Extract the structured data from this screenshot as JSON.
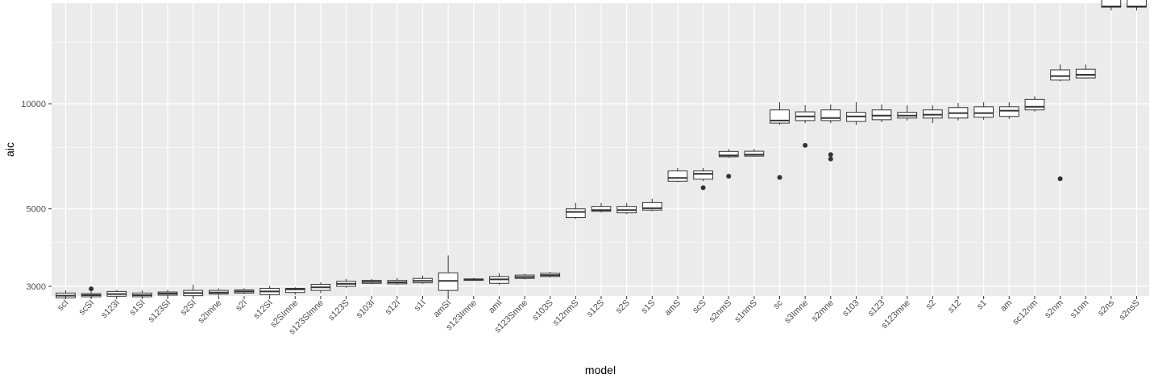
{
  "chart_data": {
    "type": "box",
    "xlabel": "model",
    "ylabel": "aic",
    "y_scale": "log",
    "ylim": [
      2400,
      22000
    ],
    "y_ticks": [
      3000,
      5000,
      10000
    ],
    "y_minor_ticks": [
      4000,
      7500,
      15000
    ],
    "grid": true,
    "colors": {
      "panel": "#EBEBEB",
      "grid": "#FFFFFF",
      "box_fill": "#FFFFFF",
      "box_line": "#333333"
    },
    "boxes": [
      {
        "model": "scI",
        "lower": 2760,
        "q1": 2780,
        "median": 2820,
        "q3": 2870,
        "upper": 2920,
        "outliers": []
      },
      {
        "model": "scSI",
        "lower": 2780,
        "q1": 2800,
        "median": 2830,
        "q3": 2860,
        "upper": 2900,
        "outliers": [
          2950
        ]
      },
      {
        "model": "s123I",
        "lower": 2790,
        "q1": 2810,
        "median": 2850,
        "q3": 2900,
        "upper": 2930,
        "outliers": []
      },
      {
        "model": "s1SI",
        "lower": 2780,
        "q1": 2800,
        "median": 2830,
        "q3": 2870,
        "upper": 2920,
        "outliers": []
      },
      {
        "model": "s123SI",
        "lower": 2800,
        "q1": 2830,
        "median": 2860,
        "q3": 2890,
        "upper": 2930,
        "outliers": []
      },
      {
        "model": "s2SI",
        "lower": 2790,
        "q1": 2820,
        "median": 2870,
        "q3": 2920,
        "upper": 3030,
        "outliers": []
      },
      {
        "model": "s2Imne",
        "lower": 2820,
        "q1": 2850,
        "median": 2880,
        "q3": 2920,
        "upper": 2960,
        "outliers": []
      },
      {
        "model": "s2I",
        "lower": 2850,
        "q1": 2870,
        "median": 2900,
        "q3": 2930,
        "upper": 2960,
        "outliers": []
      },
      {
        "model": "s12SI",
        "lower": 2810,
        "q1": 2840,
        "median": 2900,
        "q3": 2960,
        "upper": 3010,
        "outliers": []
      },
      {
        "model": "s2SImne",
        "lower": 2840,
        "q1": 2880,
        "median": 2940,
        "q3": 2960,
        "upper": 2980,
        "outliers": []
      },
      {
        "model": "s123SImne",
        "lower": 2870,
        "q1": 2920,
        "median": 2980,
        "q3": 3040,
        "upper": 3080,
        "outliers": []
      },
      {
        "model": "s123S",
        "lower": 2970,
        "q1": 3000,
        "median": 3050,
        "q3": 3100,
        "upper": 3150,
        "outliers": []
      },
      {
        "model": "s103I",
        "lower": 3040,
        "q1": 3060,
        "median": 3090,
        "q3": 3120,
        "upper": 3150,
        "outliers": []
      },
      {
        "model": "s12I",
        "lower": 3030,
        "q1": 3050,
        "median": 3080,
        "q3": 3120,
        "upper": 3170,
        "outliers": []
      },
      {
        "model": "s1I",
        "lower": 3050,
        "q1": 3070,
        "median": 3110,
        "q3": 3160,
        "upper": 3220,
        "outliers": []
      },
      {
        "model": "amSI",
        "lower": 2800,
        "q1": 2920,
        "median": 3110,
        "q3": 3280,
        "upper": 3680,
        "outliers": []
      },
      {
        "model": "s123Imne",
        "lower": 3110,
        "q1": 3120,
        "median": 3135,
        "q3": 3150,
        "upper": 3170,
        "outliers": []
      },
      {
        "model": "amI",
        "lower": 3030,
        "q1": 3060,
        "median": 3140,
        "q3": 3200,
        "upper": 3270,
        "outliers": []
      },
      {
        "model": "s123Smne",
        "lower": 3140,
        "q1": 3160,
        "median": 3190,
        "q3": 3230,
        "upper": 3260,
        "outliers": []
      },
      {
        "model": "s103S",
        "lower": 3180,
        "q1": 3200,
        "median": 3230,
        "q3": 3270,
        "upper": 3300,
        "outliers": []
      },
      {
        "model": "s12nmS",
        "lower": 4680,
        "q1": 4720,
        "median": 4900,
        "q3": 5000,
        "upper": 5200,
        "outliers": []
      },
      {
        "model": "s12S",
        "lower": 4880,
        "q1": 4920,
        "median": 4960,
        "q3": 5080,
        "upper": 5200,
        "outliers": []
      },
      {
        "model": "s2S",
        "lower": 4830,
        "q1": 4870,
        "median": 4960,
        "q3": 5080,
        "upper": 5200,
        "outliers": []
      },
      {
        "model": "s1S",
        "lower": 4920,
        "q1": 4960,
        "median": 5020,
        "q3": 5220,
        "upper": 5350,
        "outliers": []
      },
      {
        "model": "amS",
        "lower": 5960,
        "q1": 6000,
        "median": 6130,
        "q3": 6420,
        "upper": 6550,
        "outliers": []
      },
      {
        "model": "scS",
        "lower": 6000,
        "q1": 6080,
        "median": 6300,
        "q3": 6420,
        "upper": 6550,
        "outliers": [
          5750
        ]
      },
      {
        "model": "s2nmS",
        "lower": 7000,
        "q1": 7050,
        "median": 7110,
        "q3": 7300,
        "upper": 7420,
        "outliers": [
          6200
        ]
      },
      {
        "model": "s1nmS",
        "lower": 7050,
        "q1": 7080,
        "median": 7150,
        "q3": 7310,
        "upper": 7420,
        "outliers": []
      },
      {
        "model": "sc",
        "lower": 8700,
        "q1": 8800,
        "median": 8950,
        "q3": 9600,
        "upper": 10100,
        "outliers": [
          6150
        ]
      },
      {
        "model": "s3Imne",
        "lower": 8800,
        "q1": 8950,
        "median": 9200,
        "q3": 9480,
        "upper": 9900,
        "outliers": [
          7600
        ]
      },
      {
        "model": "s2mne",
        "lower": 8800,
        "q1": 8950,
        "median": 9100,
        "q3": 9600,
        "upper": 9950,
        "outliers": [
          7150,
          6950
        ]
      },
      {
        "model": "s103",
        "lower": 8700,
        "q1": 8900,
        "median": 9200,
        "q3": 9450,
        "upper": 10100,
        "outliers": []
      },
      {
        "model": "s123",
        "lower": 8850,
        "q1": 9000,
        "median": 9250,
        "q3": 9600,
        "upper": 9950,
        "outliers": []
      },
      {
        "model": "s123mne",
        "lower": 8950,
        "q1": 9100,
        "median": 9250,
        "q3": 9450,
        "upper": 9900,
        "outliers": []
      },
      {
        "model": "s2",
        "lower": 8800,
        "q1": 9100,
        "median": 9300,
        "q3": 9600,
        "upper": 9900,
        "outliers": []
      },
      {
        "model": "s12",
        "lower": 8950,
        "q1": 9100,
        "median": 9400,
        "q3": 9750,
        "upper": 10050,
        "outliers": []
      },
      {
        "model": "s1",
        "lower": 9000,
        "q1": 9150,
        "median": 9400,
        "q3": 9800,
        "upper": 10100,
        "outliers": []
      },
      {
        "model": "am",
        "lower": 9050,
        "q1": 9200,
        "median": 9550,
        "q3": 9800,
        "upper": 10100,
        "outliers": []
      },
      {
        "model": "sc12nm",
        "lower": 9500,
        "q1": 9600,
        "median": 9800,
        "q3": 10300,
        "upper": 10500,
        "outliers": []
      },
      {
        "model": "s2nm",
        "lower": 11600,
        "q1": 11700,
        "median": 12000,
        "q3": 12500,
        "upper": 12950,
        "outliers": [
          6100
        ]
      },
      {
        "model": "s1nm",
        "lower": 11800,
        "q1": 11850,
        "median": 12100,
        "q3": 12550,
        "upper": 12950,
        "outliers": []
      },
      {
        "model": "s2ns",
        "lower": 18500,
        "q1": 18900,
        "median": 19000,
        "q3": 20600,
        "upper": 21300,
        "outliers": []
      },
      {
        "model": "s2nsS",
        "lower": 18500,
        "q1": 18900,
        "median": 19000,
        "q3": 20600,
        "upper": 21300,
        "outliers": []
      }
    ]
  }
}
